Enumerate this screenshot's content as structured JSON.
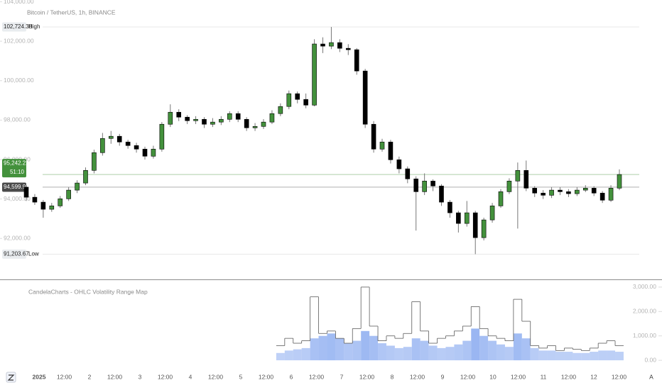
{
  "chart_data": [
    {
      "type": "candlestick",
      "title": "Bitcoin / TetherUS, 1h, BINANCE",
      "up_color": "#43913c",
      "down_color": "#000000",
      "ylim": [
        89960,
        104090
      ],
      "yticks": [
        {
          "value": 92000,
          "label": "92,000.00"
        },
        {
          "value": 94000,
          "label": "94,000.00"
        },
        {
          "value": 96000,
          "label": "96,000.00"
        },
        {
          "value": 98000,
          "label": "98,000.00"
        },
        {
          "value": 100000,
          "label": "100,000.00"
        },
        {
          "value": 102000,
          "label": "102,000.00"
        },
        {
          "value": 104000,
          "label": "104,000.00"
        }
      ],
      "price_lines": [
        {
          "value": 102724.38,
          "label": "102,724.38",
          "tag": "High",
          "color": "#e9ecef"
        },
        {
          "value": 95242.21,
          "label": "95,242.21",
          "tag": "51:10",
          "color": "#43913c"
        },
        {
          "value": 94599.99,
          "label": "94,599.99",
          "color": "#4a4a4a"
        },
        {
          "value": 91203.67,
          "label": "91,203.67",
          "tag": "Low",
          "color": "#e9ecef"
        }
      ],
      "open": [
        94600,
        94090,
        93840,
        93480,
        93650,
        94010,
        94450,
        94810,
        95450,
        96350,
        97070,
        97180,
        96890,
        96710,
        96530,
        96170,
        96530,
        97790,
        98400,
        98150,
        97970,
        98040,
        97790,
        97900,
        98040,
        98330,
        98040,
        97610,
        97680,
        97900,
        98330,
        98690,
        99340,
        99050,
        98760,
        101860,
        101750,
        101930,
        101640,
        101570,
        100490,
        97790,
        96530,
        96890,
        95990,
        95530,
        95020,
        94370,
        94910,
        94660,
        93840,
        93300,
        92760,
        93300,
        92040,
        92940,
        93650,
        94370,
        94910,
        95450,
        94550,
        94300,
        94190,
        94450,
        94370,
        94270,
        94450,
        94550,
        94300,
        93940,
        94550
      ],
      "high": [
        94700,
        94250,
        93950,
        93800,
        94150,
        94600,
        94950,
        95600,
        96500,
        97350,
        97450,
        97300,
        97000,
        96850,
        96650,
        96700,
        97900,
        98800,
        98550,
        98250,
        98200,
        98150,
        98100,
        98200,
        98450,
        98450,
        98150,
        97850,
        98050,
        98500,
        98850,
        99500,
        99450,
        99350,
        102100,
        102200,
        102724.38,
        102100,
        101850,
        101650,
        100600,
        97950,
        97050,
        97000,
        96150,
        95650,
        95150,
        95300,
        95000,
        94750,
        93950,
        93400,
        93900,
        93400,
        93050,
        93800,
        94500,
        95050,
        95850,
        95950,
        94650,
        94450,
        94600,
        94600,
        94500,
        94600,
        94700,
        94650,
        94400,
        94700,
        95500
      ],
      "low": [
        93900,
        93700,
        93050,
        93350,
        93550,
        93900,
        94300,
        94700,
        95300,
        96200,
        96800,
        96700,
        96550,
        96350,
        96000,
        96050,
        96400,
        97650,
        97950,
        97800,
        97800,
        97600,
        97650,
        97750,
        97900,
        97900,
        97450,
        97450,
        97550,
        97800,
        98200,
        98550,
        98850,
        98600,
        98700,
        101400,
        101600,
        101450,
        101300,
        100300,
        97600,
        96350,
        96400,
        95800,
        95300,
        94800,
        92400,
        94200,
        94400,
        93650,
        93050,
        92300,
        92600,
        91203.67,
        91900,
        92800,
        93550,
        94250,
        92500,
        94400,
        94100,
        94000,
        94050,
        94200,
        94100,
        94150,
        94350,
        94150,
        93800,
        93850,
        94450
      ],
      "close": [
        94090,
        93840,
        93480,
        93650,
        94010,
        94450,
        94810,
        95450,
        96350,
        97070,
        97180,
        96890,
        96710,
        96530,
        96170,
        96530,
        97790,
        98400,
        98150,
        97970,
        98040,
        97790,
        97900,
        98040,
        98330,
        98040,
        97610,
        97680,
        97900,
        98330,
        98690,
        99340,
        99050,
        98760,
        101860,
        101750,
        101930,
        101640,
        101570,
        100490,
        97790,
        96530,
        96890,
        95990,
        95530,
        95020,
        94370,
        94910,
        94660,
        93840,
        93300,
        92760,
        93300,
        92040,
        92940,
        93650,
        94370,
        94910,
        95450,
        94550,
        94300,
        94190,
        94450,
        94370,
        94270,
        94450,
        94550,
        94300,
        93940,
        94550,
        95242.21
      ],
      "xtick_labels": [
        "2025",
        "12:00",
        "2",
        "12:00",
        "3",
        "12:00",
        "4",
        "12:00",
        "5",
        "12:00",
        "6",
        "12:00",
        "7",
        "12:00",
        "8",
        "12:00",
        "9",
        "12:00",
        "10",
        "12:00",
        "11",
        "12:00",
        "12",
        "12:00"
      ]
    },
    {
      "type": "step",
      "title": "CandelaCharts - OHLC Volatility Range Map",
      "ylim": [
        -200,
        3200
      ],
      "yticks": [
        {
          "value": 0,
          "label": "0.00"
        },
        {
          "value": 1000,
          "label": "1,000.00"
        },
        {
          "value": 2000,
          "label": "2,000.00"
        },
        {
          "value": 3000,
          "label": "3,000.00"
        }
      ],
      "series": [
        {
          "color": "#5b5b5b",
          "values": [
            null,
            null,
            null,
            null,
            null,
            null,
            null,
            null,
            null,
            null,
            null,
            null,
            null,
            null,
            null,
            null,
            null,
            null,
            null,
            null,
            null,
            null,
            null,
            null,
            null,
            null,
            null,
            null,
            null,
            null,
            600,
            900,
            700,
            800,
            2600,
            1100,
            1200,
            900,
            700,
            1300,
            3000,
            1400,
            800,
            1000,
            900,
            1100,
            2400,
            1200,
            700,
            900,
            1000,
            1200,
            1400,
            2200,
            1300,
            1000,
            900,
            800,
            2500,
            1600,
            600,
            500,
            600,
            400,
            500,
            450,
            400,
            500,
            700,
            800,
            600
          ]
        },
        {
          "color": "#7fa3ee",
          "values": [
            null,
            null,
            null,
            null,
            null,
            null,
            null,
            null,
            null,
            null,
            null,
            null,
            null,
            null,
            null,
            null,
            null,
            null,
            null,
            null,
            null,
            null,
            null,
            null,
            null,
            null,
            null,
            null,
            null,
            null,
            300,
            400,
            450,
            500,
            900,
            1000,
            1100,
            900,
            700,
            800,
            1200,
            1000,
            700,
            600,
            500,
            550,
            900,
            800,
            600,
            500,
            550,
            650,
            800,
            1300,
            1000,
            800,
            650,
            550,
            1100,
            900,
            500,
            400,
            400,
            350,
            350,
            300,
            300,
            350,
            400,
            400,
            350
          ]
        }
      ]
    }
  ],
  "controls": {
    "auto": "A"
  }
}
